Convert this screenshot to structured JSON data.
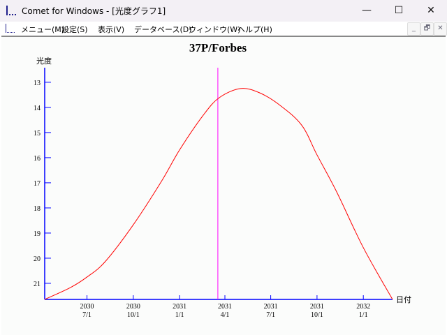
{
  "window": {
    "title": "Comet for Windows - [光度グラフ1]",
    "minimize": "—",
    "maximize": "☐",
    "close": "✕"
  },
  "menu": {
    "items": [
      "メニュー(M)",
      "設定(S)",
      "表示(V)",
      "データベース(D)",
      "ウィンドウ(W)",
      "ヘルプ(H)"
    ],
    "mdi": {
      "minimize": "_",
      "restore": "🗗",
      "close": "✕"
    }
  },
  "chart_data": {
    "type": "line",
    "title": "37P/Forbes",
    "ylabel": "光度",
    "xlabel": "日付",
    "y_inverted": true,
    "ylim": [
      12.42,
      21.64
    ],
    "yticks": [
      13,
      14,
      15,
      16,
      17,
      18,
      19,
      20,
      21
    ],
    "xlim": [
      "2030-04-08",
      "2032-02-28"
    ],
    "xticks": [
      {
        "date": "2030-07-01",
        "year": "2030",
        "md": "7/1"
      },
      {
        "date": "2030-10-01",
        "year": "2030",
        "md": "10/1"
      },
      {
        "date": "2031-01-01",
        "year": "2031",
        "md": "1/1"
      },
      {
        "date": "2031-04-01",
        "year": "2031",
        "md": "4/1"
      },
      {
        "date": "2031-07-01",
        "year": "2031",
        "md": "7/1"
      },
      {
        "date": "2031-10-01",
        "year": "2031",
        "md": "10/1"
      },
      {
        "date": "2032-01-01",
        "year": "2032",
        "md": "1/1"
      }
    ],
    "cursor_date": "2031-03-18",
    "series": [
      {
        "color": "#ff0000",
        "points": [
          [
            "2030-04-08",
            21.64
          ],
          [
            "2030-05-29",
            21.17
          ],
          [
            "2030-07-01",
            20.75
          ],
          [
            "2030-08-06",
            20.14
          ],
          [
            "2030-10-01",
            18.67
          ],
          [
            "2030-11-26",
            16.94
          ],
          [
            "2031-01-01",
            15.69
          ],
          [
            "2031-02-17",
            14.31
          ],
          [
            "2031-03-21",
            13.61
          ],
          [
            "2031-05-02",
            13.25
          ],
          [
            "2031-06-09",
            13.42
          ],
          [
            "2031-07-21",
            13.94
          ],
          [
            "2031-09-01",
            14.72
          ],
          [
            "2031-10-01",
            15.89
          ],
          [
            "2031-11-09",
            17.36
          ],
          [
            "2032-01-01",
            19.58
          ],
          [
            "2032-02-28",
            21.64
          ]
        ]
      }
    ],
    "colors": {
      "axis": "#0000ff",
      "curve": "#ff0000",
      "cursor": "#ff00ff"
    }
  }
}
